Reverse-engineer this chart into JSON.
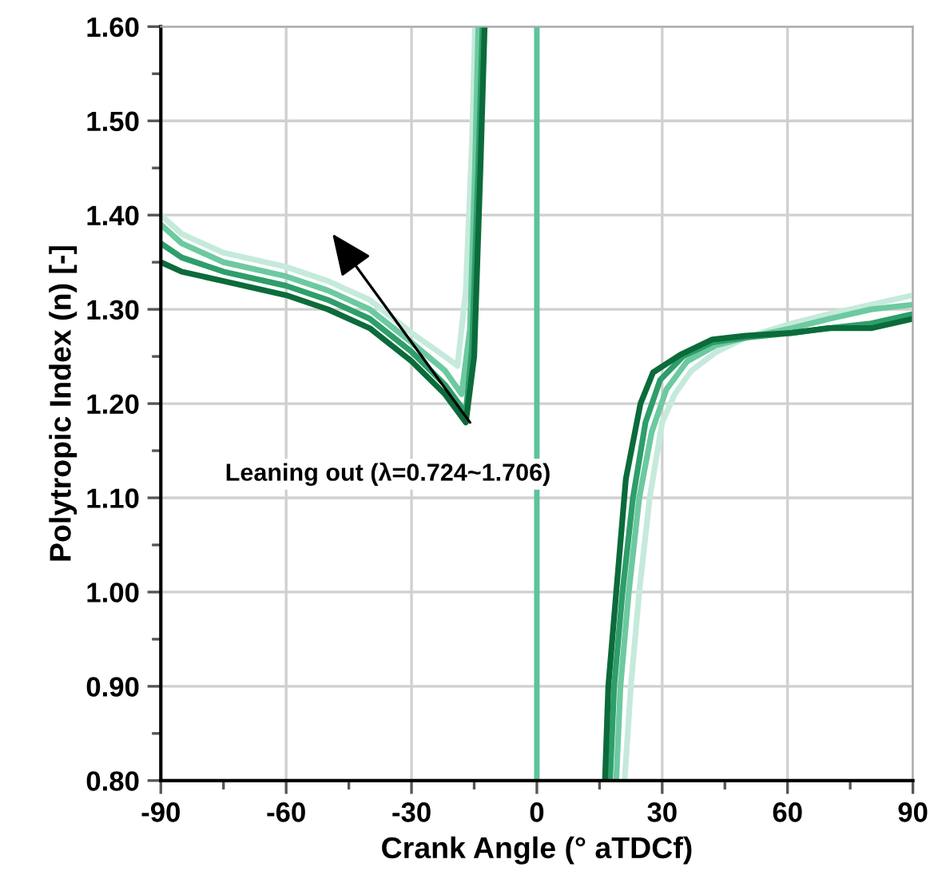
{
  "chart_data": {
    "type": "line",
    "xlabel": "Crank Angle (° aTDCf)",
    "ylabel": "Polytropic Index (n) [-]",
    "xlim": [
      -90,
      90
    ],
    "xticks": [
      -90,
      -60,
      -30,
      0,
      30,
      60,
      90
    ],
    "ylim": [
      0.8,
      1.6
    ],
    "yticks": [
      {
        "value": 0.8,
        "label": "0.80"
      },
      {
        "value": 0.9,
        "label": "0.90"
      },
      {
        "value": 1.0,
        "label": "1.00"
      },
      {
        "value": 1.1,
        "label": "1.10"
      },
      {
        "value": 1.2,
        "label": "1.20"
      },
      {
        "value": 1.3,
        "label": "1.30"
      },
      {
        "value": 1.4,
        "label": "1.40"
      },
      {
        "value": 1.5,
        "label": "1.50"
      },
      {
        "value": 1.6,
        "label": "1.60"
      }
    ],
    "grid": true,
    "marker": "none",
    "line_style": "solid",
    "ref_lines": [
      {
        "axis": "x",
        "value": 0,
        "color": "#5cc49a"
      }
    ],
    "annotations": [
      {
        "text": "Leaning out (λ=0.724~1.706)",
        "x": -16,
        "y": 1.18
      }
    ],
    "series": [
      {
        "color": "#c5eadb",
        "x": [
          -90,
          -85,
          -75,
          -60,
          -50,
          -40,
          -30,
          -22,
          -19,
          -17,
          -15.5,
          -14.8,
          0,
          21,
          22.5,
          24.5,
          27,
          30,
          33,
          37,
          43,
          50,
          61,
          70,
          80,
          90
        ],
        "values": [
          1.4,
          1.38,
          1.36,
          1.345,
          1.33,
          1.31,
          1.275,
          1.25,
          1.24,
          1.32,
          1.48,
          1.6,
          null,
          0.8,
          0.9,
          1.0,
          1.1,
          1.18,
          1.21,
          1.235,
          1.255,
          1.27,
          1.285,
          1.295,
          1.305,
          1.315
        ]
      },
      {
        "color": "#6cc9a0",
        "x": [
          -90,
          -85,
          -75,
          -60,
          -50,
          -40,
          -30,
          -22,
          -18,
          -16,
          -14.8,
          -14,
          0,
          19,
          20,
          22,
          24.5,
          27.5,
          31,
          36,
          43,
          50,
          61,
          70,
          80,
          90
        ],
        "values": [
          1.39,
          1.37,
          1.35,
          1.335,
          1.32,
          1.3,
          1.265,
          1.235,
          1.21,
          1.28,
          1.45,
          1.6,
          null,
          0.8,
          0.9,
          1.0,
          1.1,
          1.17,
          1.215,
          1.245,
          1.262,
          1.27,
          1.28,
          1.29,
          1.3,
          1.305
        ]
      },
      {
        "color": "#2e9e6a",
        "x": [
          -90,
          -85,
          -75,
          -60,
          -50,
          -40,
          -30,
          -22,
          -17,
          -15.5,
          -14,
          -13,
          0,
          17.5,
          18.5,
          20.5,
          23,
          26,
          29.5,
          35,
          42,
          50,
          61,
          70,
          80,
          90
        ],
        "values": [
          1.37,
          1.355,
          1.34,
          1.325,
          1.31,
          1.29,
          1.255,
          1.22,
          1.19,
          1.26,
          1.45,
          1.6,
          null,
          0.8,
          0.9,
          1.0,
          1.1,
          1.18,
          1.225,
          1.25,
          1.265,
          1.27,
          1.275,
          1.28,
          1.285,
          1.295
        ]
      },
      {
        "color": "#0b6b3a",
        "x": [
          -90,
          -85,
          -75,
          -60,
          -50,
          -40,
          -30,
          -22,
          -17,
          -15,
          -13.5,
          -12.5,
          0,
          16.3,
          17.1,
          19.0,
          21.3,
          24.8,
          27.8,
          34.4,
          42,
          50,
          61,
          70,
          80,
          90
        ],
        "values": [
          1.35,
          1.34,
          1.33,
          1.315,
          1.3,
          1.28,
          1.245,
          1.21,
          1.18,
          1.25,
          1.45,
          1.6,
          null,
          0.8,
          0.9,
          1.0,
          1.12,
          1.2,
          1.233,
          1.252,
          1.268,
          1.272,
          1.275,
          1.28,
          1.28,
          1.29
        ]
      }
    ]
  }
}
